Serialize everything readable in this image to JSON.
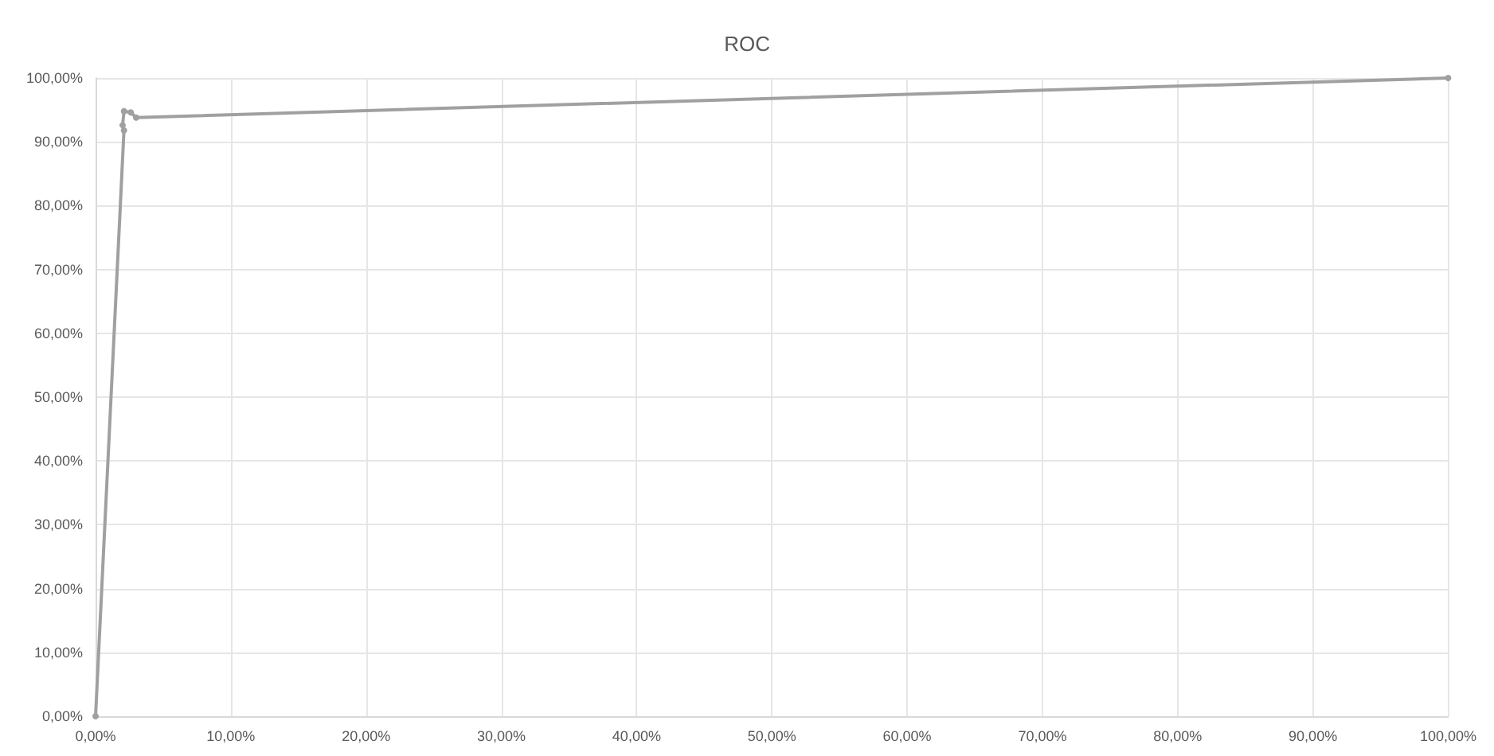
{
  "chart_data": {
    "type": "line",
    "title": "ROC",
    "marker": "circle",
    "grid": true,
    "x": [
      0,
      2.1,
      2.0,
      2.1,
      2.6,
      3.0,
      100
    ],
    "series": [
      {
        "color": "#a0a0a0",
        "values": [
          0,
          91.8,
          92.6,
          94.8,
          94.6,
          93.8,
          100
        ]
      }
    ],
    "xlim": [
      0,
      100
    ],
    "ylim": [
      0,
      100
    ],
    "xticks": [
      {
        "value": 0,
        "label": "0,00%"
      },
      {
        "value": 10,
        "label": "10,00%"
      },
      {
        "value": 20,
        "label": "20,00%"
      },
      {
        "value": 30,
        "label": "30,00%"
      },
      {
        "value": 40,
        "label": "40,00%"
      },
      {
        "value": 50,
        "label": "50,00%"
      },
      {
        "value": 60,
        "label": "60,00%"
      },
      {
        "value": 70,
        "label": "70,00%"
      },
      {
        "value": 80,
        "label": "80,00%"
      },
      {
        "value": 90,
        "label": "90,00%"
      },
      {
        "value": 100,
        "label": "100,00%"
      }
    ],
    "yticks": [
      {
        "value": 0,
        "label": "0,00%"
      },
      {
        "value": 10,
        "label": "10,00%"
      },
      {
        "value": 20,
        "label": "20,00%"
      },
      {
        "value": 30,
        "label": "30,00%"
      },
      {
        "value": 40,
        "label": "40,00%"
      },
      {
        "value": 50,
        "label": "50,00%"
      },
      {
        "value": 60,
        "label": "60,00%"
      },
      {
        "value": 70,
        "label": "70,00%"
      },
      {
        "value": 80,
        "label": "80,00%"
      },
      {
        "value": 90,
        "label": "90,00%"
      },
      {
        "value": 100,
        "label": "100,00%"
      }
    ]
  }
}
